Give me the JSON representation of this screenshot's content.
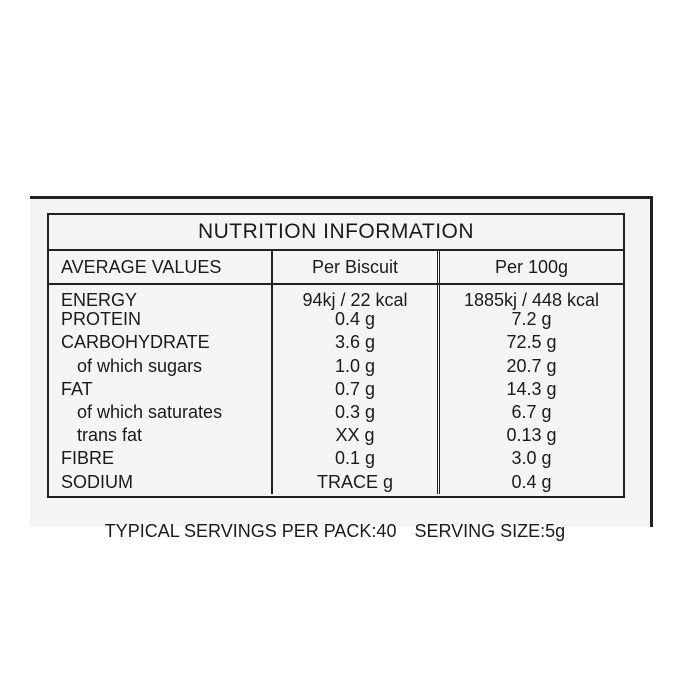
{
  "title": "NUTRITION INFORMATION",
  "table": {
    "headers": [
      "AVERAGE VALUES",
      "Per Biscuit",
      "Per 100g"
    ],
    "rows": [
      [
        "ENERGY",
        "94kj / 22 kcal",
        "1885kj / 448 kcal"
      ],
      [
        "PROTEIN",
        "0.4 g",
        "7.2 g"
      ],
      [
        "CARBOHYDRATE",
        "3.6 g",
        "72.5 g"
      ],
      [
        "of which sugars",
        "1.0 g",
        "20.7 g"
      ],
      [
        "FAT",
        "0.7 g",
        "14.3 g"
      ],
      [
        "of which saturates",
        "0.3 g",
        "6.7 g"
      ],
      [
        "trans fat",
        "XX g",
        "0.13 g"
      ],
      [
        "FIBRE",
        "0.1 g",
        "3.0 g"
      ],
      [
        "SODIUM",
        "TRACE g",
        "0.4 g"
      ]
    ]
  },
  "footer": [
    "TYPICAL SERVINGS PER PACK:40",
    "SERVING SIZE:5g"
  ]
}
